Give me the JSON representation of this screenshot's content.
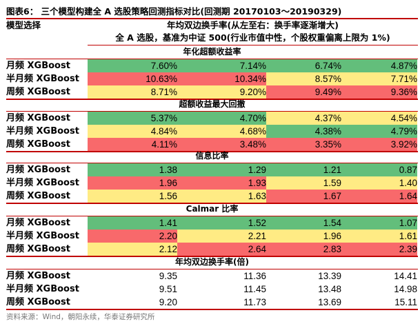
{
  "title": "图表6： 三个模型构建全 A 选股策略回测指标对比(回测期 20170103～20190329)",
  "header": {
    "model_label": "模型选择",
    "turnover_label": "年均双边换手率(从左至右：换手率逐渐增大)",
    "universe_label": "全 A 选股，基准为中证 500(行业市值中性，个股权重偏离上限为 1%)"
  },
  "colors": {
    "green": "#63be7b",
    "red": "#f8696b",
    "yellow": "#ffeb84",
    "rule": "#c00000"
  },
  "sections": [
    {
      "title": "年化超额收益率",
      "rows": [
        {
          "model": "月频 XGBoost",
          "values": [
            "7.60%",
            "7.14%",
            "6.74%",
            "4.87%"
          ],
          "colors": [
            "g",
            "g",
            "g",
            "g"
          ]
        },
        {
          "model": "半月频 XGBoost",
          "values": [
            "10.63%",
            "10.34%",
            "8.57%",
            "7.71%"
          ],
          "colors": [
            "r",
            "r",
            "y",
            "y"
          ]
        },
        {
          "model": "周频 XGBoost",
          "values": [
            "8.71%",
            "9.20%",
            "9.49%",
            "9.36%"
          ],
          "colors": [
            "y",
            "y",
            "r",
            "r"
          ]
        }
      ]
    },
    {
      "title": "超额收益最大回撤",
      "rows": [
        {
          "model": "月频 XGBoost",
          "values": [
            "5.37%",
            "4.70%",
            "4.37%",
            "4.54%"
          ],
          "colors": [
            "g",
            "g",
            "y",
            "y"
          ]
        },
        {
          "model": "半月频 XGBoost",
          "values": [
            "4.84%",
            "4.68%",
            "4.38%",
            "4.79%"
          ],
          "colors": [
            "y",
            "y",
            "g",
            "g"
          ]
        },
        {
          "model": "周频 XGBoost",
          "values": [
            "4.11%",
            "3.48%",
            "3.35%",
            "3.92%"
          ],
          "colors": [
            "r",
            "r",
            "r",
            "r"
          ]
        }
      ]
    },
    {
      "title": "信息比率",
      "rows": [
        {
          "model": "月频 XGBoost",
          "values": [
            "1.38",
            "1.29",
            "1.21",
            "0.87"
          ],
          "colors": [
            "g",
            "g",
            "g",
            "g"
          ]
        },
        {
          "model": "半月频 XGBoost",
          "values": [
            "1.96",
            "1.93",
            "1.59",
            "1.40"
          ],
          "colors": [
            "r",
            "r",
            "y",
            "y"
          ]
        },
        {
          "model": "周频 XGBoost",
          "values": [
            "1.56",
            "1.63",
            "1.67",
            "1.64"
          ],
          "colors": [
            "y",
            "y",
            "r",
            "r"
          ]
        }
      ]
    },
    {
      "title": "Calmar 比率",
      "rows": [
        {
          "model": "月频 XGBoost",
          "values": [
            "1.41",
            "1.52",
            "1.54",
            "1.07"
          ],
          "colors": [
            "g",
            "g",
            "g",
            "g"
          ]
        },
        {
          "model": "半月频 XGBoost",
          "values": [
            "2.20",
            "2.21",
            "1.96",
            "1.61"
          ],
          "colors": [
            "r",
            "y",
            "y",
            "y"
          ]
        },
        {
          "model": "周频 XGBoost",
          "values": [
            "2.12",
            "2.64",
            "2.83",
            "2.39"
          ],
          "colors": [
            "y",
            "r",
            "r",
            "r"
          ]
        }
      ]
    },
    {
      "title": "年均双边换手率(倍)",
      "rows": [
        {
          "model": "月频 XGBoost",
          "values": [
            "9.35",
            "11.36",
            "13.39",
            "14.41"
          ],
          "colors": [
            "",
            "",
            "",
            ""
          ]
        },
        {
          "model": "半月频 XGBoost",
          "values": [
            "9.51",
            "11.45",
            "13.48",
            "14.98"
          ],
          "colors": [
            "",
            "",
            "",
            ""
          ]
        },
        {
          "model": "周频 XGBoost",
          "values": [
            "9.20",
            "11.73",
            "13.69",
            "15.11"
          ],
          "colors": [
            "",
            "",
            "",
            ""
          ]
        }
      ]
    }
  ],
  "source": "资料来源：Wind，朝阳永续，华泰证券研究所"
}
